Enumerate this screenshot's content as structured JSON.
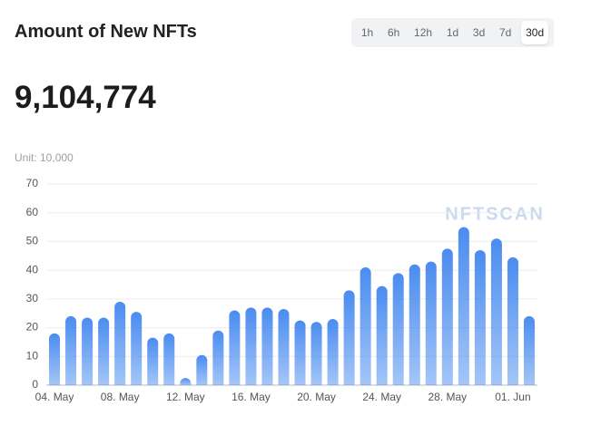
{
  "header": {
    "title": "Amount of New NFTs",
    "total": "9,104,774",
    "unit": "Unit: 10,000"
  },
  "tabs": {
    "items": [
      "1h",
      "6h",
      "12h",
      "1d",
      "3d",
      "7d",
      "30d"
    ],
    "active": "30d"
  },
  "chart_data": {
    "type": "bar",
    "watermark": "NFTSCAN",
    "categories": [
      "04. May",
      null,
      null,
      null,
      "08. May",
      null,
      null,
      null,
      "12. May",
      null,
      null,
      null,
      "16. May",
      null,
      null,
      null,
      "20. May",
      null,
      null,
      null,
      "24. May",
      null,
      null,
      null,
      "28. May",
      null,
      null,
      null,
      "01. Jun",
      null
    ],
    "values": [
      18,
      24,
      23.5,
      23.5,
      29,
      25.5,
      16.5,
      18,
      2.5,
      10.5,
      19,
      26,
      27,
      27,
      26.5,
      22.5,
      22,
      23,
      33,
      41,
      34.5,
      39,
      42,
      43,
      47.5,
      55,
      47,
      51,
      44.5,
      24
    ],
    "color": "#4a8cf0",
    "ylim": [
      0,
      70
    ],
    "yticks": [
      0,
      10,
      20,
      30,
      40,
      50,
      60,
      70
    ],
    "grid": true
  }
}
